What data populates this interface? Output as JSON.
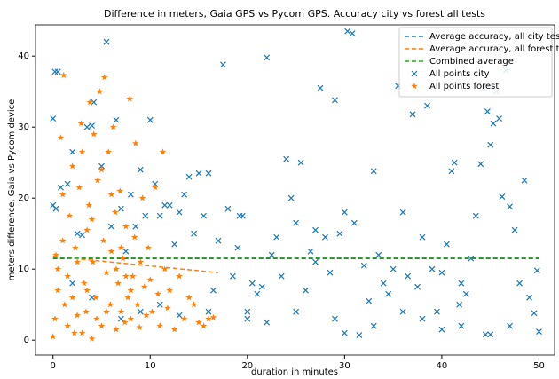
{
  "chart_data": {
    "type": "scatter",
    "title": "Difference in meters, Gaia GPS vs Pycom GPS. Accuracy city vs forest all tests",
    "xlabel": "duration in minutes",
    "ylabel": "meters difference, Gaia vs Pycom device",
    "xlim": [
      -1.8,
      51.6
    ],
    "ylim": [
      -2.1,
      44.4
    ],
    "xticks": [
      0,
      10,
      20,
      30,
      40,
      50
    ],
    "yticks": [
      0,
      10,
      20,
      30,
      40
    ],
    "grid": false,
    "legend": "upper right",
    "series": [
      {
        "name": "Average accuracy, all city tests",
        "color": "#1f77b4",
        "style": "dashed",
        "x": [
          0,
          50
        ],
        "values": [
          11.5,
          11.5
        ]
      },
      {
        "name": "Average accuracy, all forest tests",
        "color": "#ff7f0e",
        "style": "dashed",
        "x": [
          0,
          17
        ],
        "values": [
          11.8,
          9.5
        ]
      },
      {
        "name": "Combined average",
        "color": "#2ca02c",
        "style": "dashed",
        "x": [
          0,
          50
        ],
        "values": [
          11.6,
          11.6
        ]
      },
      {
        "name": "All points city",
        "color": "#1f77b4",
        "marker": "x",
        "x": [
          0,
          0.2,
          0.5,
          0,
          0.3,
          0.8,
          1.5,
          2,
          2.5,
          3,
          3.5,
          4,
          4.2,
          5,
          5.5,
          6,
          6.5,
          7,
          7.5,
          8,
          8.5,
          9,
          9.5,
          10,
          10.5,
          11,
          11.5,
          12,
          12.5,
          13,
          13.5,
          14,
          14.5,
          15,
          15.5,
          16,
          16.5,
          17,
          17.5,
          18,
          18.5,
          19,
          19.5,
          20,
          20.5,
          21,
          21.5,
          22,
          22.5,
          23,
          23.5,
          24,
          24.5,
          25,
          25.5,
          26,
          26.5,
          27,
          27.5,
          28,
          28.5,
          29,
          29.5,
          30,
          30.3,
          30.8,
          31,
          31.5,
          32,
          32.5,
          33,
          33.5,
          34,
          34.5,
          35,
          35.5,
          36,
          36.5,
          37,
          37.5,
          38,
          38.5,
          39,
          39.5,
          40,
          40.5,
          41,
          41.3,
          41.8,
          42,
          42.5,
          43,
          43.5,
          44,
          44.3,
          44.7,
          45,
          45.3,
          45.6,
          45.9,
          46.2,
          46.6,
          47,
          47.5,
          48,
          48.5,
          49,
          49.5,
          49.8,
          50,
          2,
          4,
          7,
          9,
          11,
          13,
          16,
          20,
          25,
          29,
          33,
          38,
          42,
          45,
          47,
          44.5,
          19.2,
          27,
          36,
          40,
          30,
          22
        ],
        "values": [
          31.2,
          37.8,
          37.8,
          19,
          18.5,
          21.5,
          22,
          26.5,
          15,
          14.8,
          30,
          30.2,
          33.5,
          24.5,
          42,
          16,
          31,
          18.5,
          12.5,
          20.5,
          16,
          24,
          17.5,
          31,
          22,
          17.5,
          19,
          19,
          13.5,
          18,
          20.5,
          23,
          15,
          23.5,
          17.5,
          23.5,
          7,
          14,
          38.8,
          18.5,
          9,
          13,
          17.5,
          4,
          8,
          6.5,
          7.5,
          39.8,
          12,
          14.5,
          9,
          25.5,
          20,
          16.5,
          25,
          7,
          12.5,
          15.5,
          35.5,
          14.5,
          9.5,
          33.8,
          15,
          18,
          43.5,
          43.2,
          16.5,
          0.7,
          10.5,
          5.5,
          23.8,
          12,
          8,
          6.5,
          10,
          35.8,
          18,
          9,
          31.8,
          7.5,
          14.5,
          33,
          10,
          4,
          9.5,
          13.5,
          23.8,
          25,
          5,
          8,
          6.5,
          11.5,
          17.5,
          24.8,
          35.5,
          32.2,
          27.5,
          30.5,
          35,
          31.2,
          20.2,
          38,
          18.8,
          15.5,
          8,
          22.5,
          6,
          3.8,
          9.8,
          1.2,
          8,
          6,
          3,
          4,
          5,
          3.5,
          4,
          3,
          4,
          3,
          2,
          3,
          2,
          0.8,
          2,
          0.8,
          17.5,
          11,
          4,
          1.5,
          1,
          2.5
        ]
      },
      {
        "name": "All points forest",
        "color": "#ff7f0e",
        "marker": "star",
        "x": [
          0,
          0.2,
          0.3,
          0.5,
          0.8,
          1,
          1.1,
          1.2,
          1.5,
          1.7,
          2,
          2.2,
          2.3,
          2.5,
          2.7,
          2.9,
          3,
          3.2,
          3.4,
          3.5,
          3.7,
          3.8,
          4,
          4.1,
          4.2,
          4.4,
          4.6,
          4.8,
          5,
          5.2,
          5.3,
          5.5,
          5.7,
          5.9,
          6,
          6.2,
          6.4,
          6.5,
          6.7,
          6.9,
          7,
          7.2,
          7.4,
          7.5,
          7.7,
          7.9,
          8,
          8.2,
          8.4,
          8.5,
          8.7,
          8.9,
          9,
          9.2,
          9.4,
          9.6,
          9.8,
          10,
          10.2,
          10.5,
          10.8,
          11,
          11.3,
          11.5,
          11.8,
          12,
          12.5,
          13,
          13.5,
          14,
          14.5,
          15,
          15.5,
          16,
          16.5,
          0.5,
          1,
          1.5,
          2,
          2.5,
          3,
          3.5,
          4,
          4.5,
          5,
          5.5,
          6,
          6.5,
          7,
          7.5,
          8
        ],
        "values": [
          0.5,
          3,
          12,
          7,
          28.5,
          20.5,
          37.3,
          5,
          9,
          17.5,
          24.5,
          1,
          13,
          3.5,
          21.5,
          30.5,
          26.5,
          8,
          4,
          15.5,
          19,
          33.5,
          0.2,
          11,
          29,
          6,
          22.5,
          35,
          2,
          14,
          37,
          9.5,
          26.5,
          5,
          12.5,
          30,
          18,
          1.5,
          8,
          21,
          4,
          11.5,
          2.5,
          16,
          6,
          34,
          3,
          9,
          14.5,
          27.7,
          5,
          1.8,
          11,
          20,
          7.5,
          3.5,
          13,
          8.5,
          4,
          21.5,
          6.5,
          2,
          26.5,
          10,
          4.5,
          7,
          1.5,
          9,
          3,
          6,
          5,
          2.5,
          2,
          3,
          3.2,
          10,
          14,
          2,
          6,
          11,
          1,
          7,
          17,
          3,
          24,
          4,
          20.5,
          10,
          13,
          9,
          7
        ]
      }
    ]
  }
}
